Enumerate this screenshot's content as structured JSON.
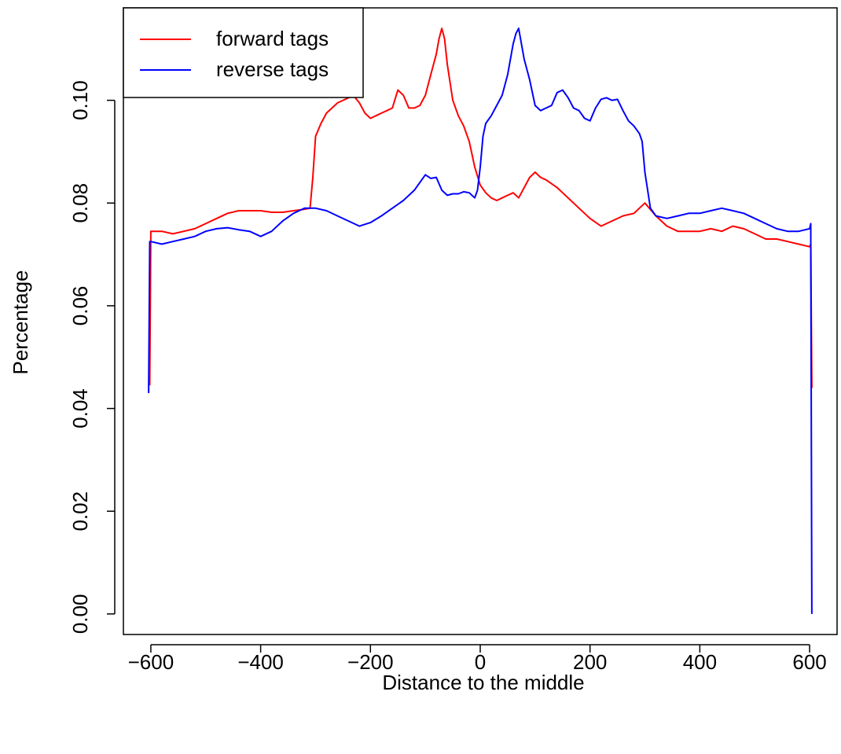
{
  "chart_data": {
    "type": "line",
    "title": "",
    "xlabel": "Distance to the middle",
    "ylabel": "Percentage",
    "xlim": [
      -650,
      650
    ],
    "ylim": [
      -0.004,
      0.118
    ],
    "xticks": [
      -600,
      -400,
      -200,
      0,
      200,
      400,
      600
    ],
    "xtick_labels": [
      "−600",
      "−400",
      "−200",
      "0",
      "200",
      "400",
      "600"
    ],
    "yticks": [
      0.0,
      0.02,
      0.04,
      0.06,
      0.08,
      0.1
    ],
    "ytick_labels": [
      "0.00",
      "0.02",
      "0.04",
      "0.06",
      "0.08",
      "0.10"
    ],
    "grid": false,
    "legend_position": "top-left",
    "series": [
      {
        "name": "forward tags",
        "color": "#ff0000",
        "x": [
          -602,
          -600,
          -580,
          -560,
          -540,
          -520,
          -500,
          -480,
          -460,
          -440,
          -420,
          -400,
          -380,
          -360,
          -340,
          -320,
          -310,
          -305,
          -300,
          -290,
          -280,
          -270,
          -260,
          -250,
          -240,
          -230,
          -220,
          -210,
          -200,
          -190,
          -180,
          -170,
          -160,
          -150,
          -140,
          -130,
          -120,
          -110,
          -100,
          -90,
          -80,
          -75,
          -70,
          -65,
          -60,
          -50,
          -40,
          -30,
          -20,
          -10,
          0,
          10,
          20,
          30,
          40,
          50,
          60,
          70,
          80,
          90,
          100,
          110,
          120,
          140,
          160,
          180,
          200,
          220,
          240,
          260,
          280,
          300,
          320,
          340,
          360,
          380,
          400,
          420,
          440,
          460,
          480,
          500,
          520,
          540,
          560,
          580,
          600,
          602,
          604
        ],
        "y": [
          0.0445,
          0.0745,
          0.0745,
          0.074,
          0.0745,
          0.075,
          0.076,
          0.077,
          0.078,
          0.0785,
          0.0785,
          0.0785,
          0.0782,
          0.0782,
          0.0785,
          0.0788,
          0.079,
          0.085,
          0.093,
          0.0955,
          0.0975,
          0.0985,
          0.0995,
          0.1,
          0.1005,
          0.1008,
          0.0995,
          0.0975,
          0.0965,
          0.097,
          0.0975,
          0.098,
          0.0985,
          0.102,
          0.101,
          0.0985,
          0.0985,
          0.099,
          0.101,
          0.105,
          0.109,
          0.112,
          0.114,
          0.112,
          0.107,
          0.1,
          0.097,
          0.095,
          0.092,
          0.087,
          0.0835,
          0.082,
          0.081,
          0.0805,
          0.081,
          0.0815,
          0.082,
          0.081,
          0.083,
          0.085,
          0.086,
          0.085,
          0.0845,
          0.083,
          0.081,
          0.079,
          0.077,
          0.0755,
          0.0765,
          0.0775,
          0.078,
          0.08,
          0.0775,
          0.0755,
          0.0745,
          0.0745,
          0.0745,
          0.075,
          0.0745,
          0.0755,
          0.075,
          0.074,
          0.073,
          0.073,
          0.0725,
          0.072,
          0.0715,
          0.072,
          0.044
        ]
      },
      {
        "name": "reverse tags",
        "color": "#0000ff",
        "x": [
          -604,
          -602,
          -600,
          -580,
          -560,
          -540,
          -520,
          -500,
          -480,
          -460,
          -440,
          -420,
          -400,
          -380,
          -360,
          -340,
          -320,
          -300,
          -280,
          -260,
          -240,
          -220,
          -200,
          -180,
          -160,
          -140,
          -120,
          -110,
          -100,
          -90,
          -80,
          -70,
          -60,
          -50,
          -40,
          -30,
          -20,
          -10,
          -5,
          0,
          5,
          10,
          20,
          30,
          40,
          50,
          60,
          65,
          70,
          80,
          90,
          100,
          110,
          120,
          130,
          140,
          150,
          160,
          170,
          180,
          190,
          200,
          210,
          220,
          230,
          240,
          250,
          260,
          270,
          280,
          290,
          295,
          300,
          310,
          320,
          340,
          360,
          380,
          400,
          420,
          440,
          460,
          480,
          500,
          520,
          540,
          560,
          580,
          600,
          602,
          604
        ],
        "y": [
          0.043,
          0.0725,
          0.0725,
          0.072,
          0.0725,
          0.073,
          0.0735,
          0.0745,
          0.075,
          0.0752,
          0.0748,
          0.0745,
          0.0735,
          0.0745,
          0.0765,
          0.078,
          0.079,
          0.079,
          0.0785,
          0.0775,
          0.0765,
          0.0755,
          0.0762,
          0.0775,
          0.079,
          0.0805,
          0.0825,
          0.084,
          0.0855,
          0.0848,
          0.085,
          0.0825,
          0.0815,
          0.0818,
          0.0818,
          0.0822,
          0.082,
          0.081,
          0.0825,
          0.087,
          0.093,
          0.0955,
          0.097,
          0.099,
          0.101,
          0.105,
          0.111,
          0.113,
          0.114,
          0.108,
          0.104,
          0.099,
          0.098,
          0.0985,
          0.099,
          0.1015,
          0.102,
          0.1005,
          0.0985,
          0.098,
          0.0965,
          0.096,
          0.0985,
          0.1002,
          0.1005,
          0.1,
          0.1002,
          0.098,
          0.096,
          0.095,
          0.0935,
          0.092,
          0.086,
          0.079,
          0.0775,
          0.077,
          0.0775,
          0.078,
          0.078,
          0.0785,
          0.079,
          0.0785,
          0.078,
          0.077,
          0.076,
          0.075,
          0.0745,
          0.0745,
          0.075,
          0.076,
          0.0
        ]
      }
    ]
  }
}
